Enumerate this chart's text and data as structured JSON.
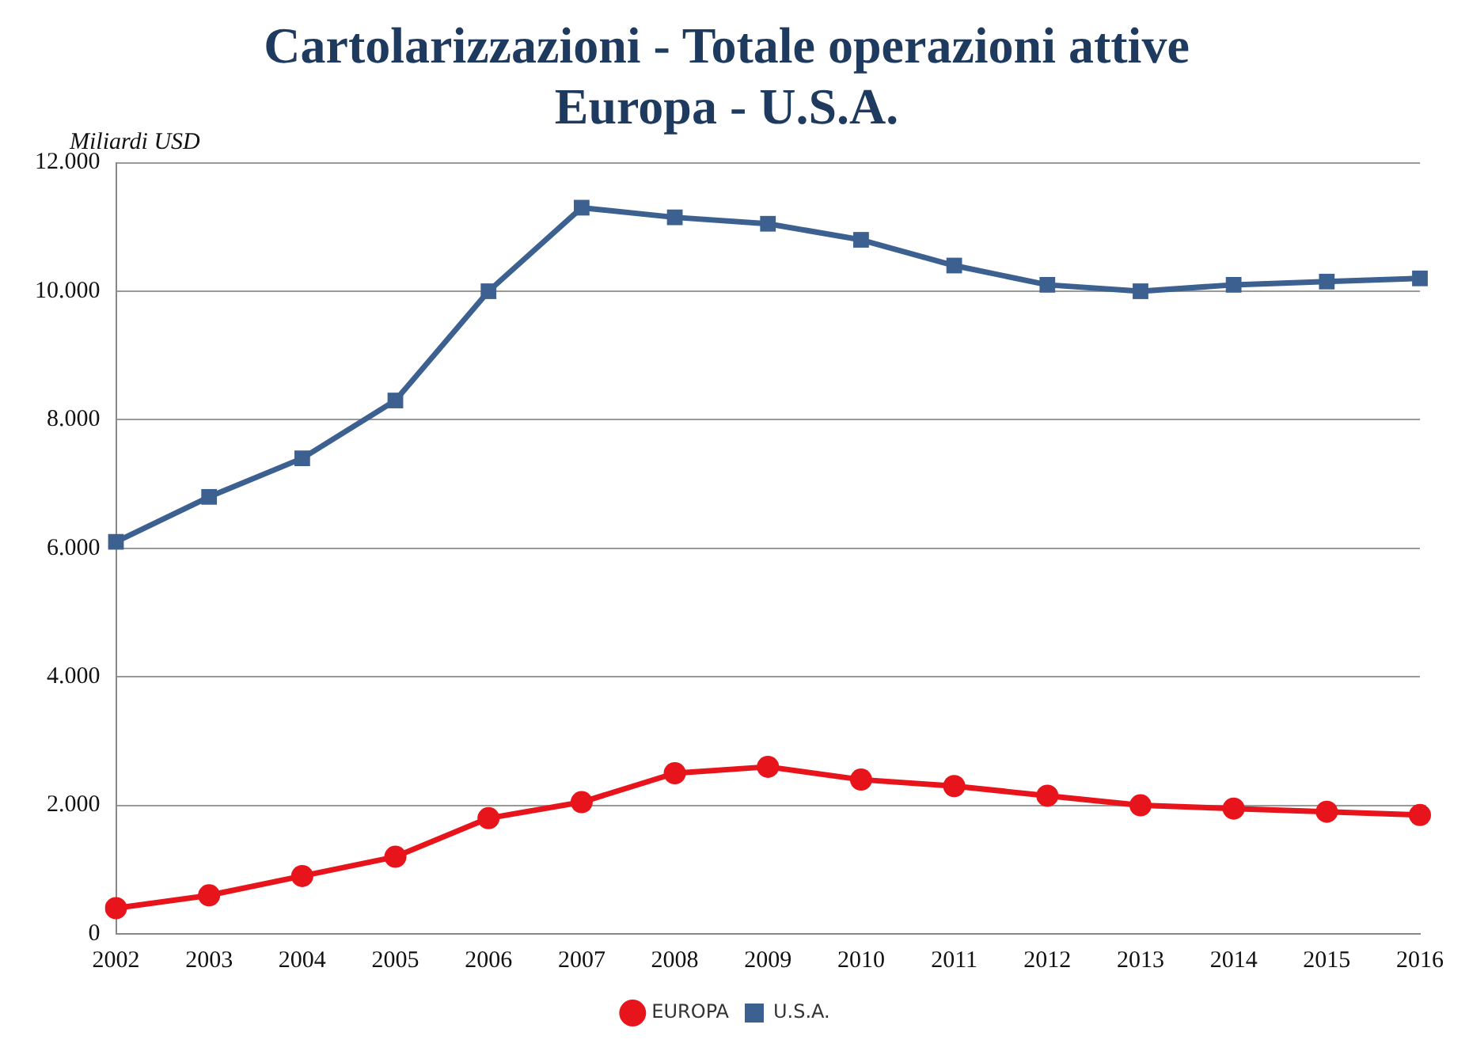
{
  "chart_data": {
    "type": "line",
    "title": "Cartolarizzazioni - Totale operazioni attive",
    "subtitle": "Europa - U.S.A.",
    "ylabel": "Miliardi USD",
    "categories": [
      "2002",
      "2003",
      "2004",
      "2005",
      "2006",
      "2007",
      "2008",
      "2009",
      "2010",
      "2011",
      "2012",
      "2013",
      "2014",
      "2015",
      "2016"
    ],
    "series": [
      {
        "name": "EUROPA",
        "color": "#e8141b",
        "marker": "circle",
        "values": [
          400,
          600,
          900,
          1200,
          1800,
          2050,
          2500,
          2600,
          2400,
          2300,
          2150,
          2000,
          1950,
          1900,
          1850
        ]
      },
      {
        "name": "U.S.A.",
        "color": "#3c6190",
        "marker": "square",
        "values": [
          6100,
          6800,
          7400,
          8300,
          10000,
          11300,
          11150,
          11050,
          10800,
          10400,
          10100,
          10000,
          10100,
          10150,
          10200
        ]
      }
    ],
    "ylim": [
      0,
      12000
    ],
    "yticks": [
      {
        "value": 0,
        "label": "0"
      },
      {
        "value": 2000,
        "label": "2.000"
      },
      {
        "value": 4000,
        "label": "4.000"
      },
      {
        "value": 6000,
        "label": "6.000"
      },
      {
        "value": 8000,
        "label": "8.000"
      },
      {
        "value": 10000,
        "label": "10.000"
      },
      {
        "value": 12000,
        "label": "12.000"
      }
    ],
    "grid": "y",
    "legend": "bottom",
    "line_style": "solid"
  }
}
